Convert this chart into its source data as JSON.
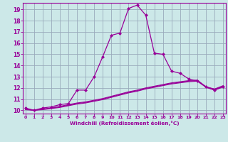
{
  "xlabel": "Windchill (Refroidissement éolien,°C)",
  "background_color": "#cce8e8",
  "grid_color": "#99aabb",
  "line_color": "#990099",
  "x_ticks": [
    0,
    1,
    2,
    3,
    4,
    5,
    6,
    7,
    8,
    9,
    10,
    11,
    12,
    13,
    14,
    15,
    16,
    17,
    18,
    19,
    20,
    21,
    22,
    23
  ],
  "y_ticks": [
    10,
    11,
    12,
    13,
    14,
    15,
    16,
    17,
    18,
    19
  ],
  "xlim": [
    -0.3,
    23.3
  ],
  "ylim": [
    9.7,
    19.6
  ],
  "series": [
    {
      "x": [
        0,
        1,
        2,
        3,
        4,
        5,
        6,
        7,
        8,
        9,
        10,
        11,
        12,
        13,
        14,
        15,
        16,
        17,
        18,
        19,
        20,
        21,
        22,
        23
      ],
      "y": [
        10.2,
        10.0,
        10.2,
        10.3,
        10.5,
        10.6,
        11.8,
        11.8,
        13.0,
        14.8,
        16.7,
        16.9,
        19.1,
        19.4,
        18.5,
        15.1,
        15.0,
        13.5,
        13.3,
        12.8,
        12.6,
        12.1,
        11.8,
        12.1
      ],
      "marker": true
    },
    {
      "x": [
        0,
        1,
        2,
        3,
        4,
        5,
        6,
        7,
        8,
        9,
        10,
        11,
        12,
        13,
        14,
        15,
        16,
        17,
        18,
        19,
        20,
        21,
        22,
        23
      ],
      "y": [
        10.1,
        10.0,
        10.1,
        10.2,
        10.35,
        10.5,
        10.65,
        10.75,
        10.9,
        11.05,
        11.25,
        11.45,
        11.65,
        11.8,
        12.0,
        12.15,
        12.3,
        12.45,
        12.55,
        12.65,
        12.7,
        12.1,
        11.9,
        12.2
      ],
      "marker": false
    },
    {
      "x": [
        0,
        1,
        2,
        3,
        4,
        5,
        6,
        7,
        8,
        9,
        10,
        11,
        12,
        13,
        14,
        15,
        16,
        17,
        18,
        19,
        20,
        21,
        22,
        23
      ],
      "y": [
        10.1,
        10.0,
        10.1,
        10.2,
        10.3,
        10.45,
        10.6,
        10.7,
        10.85,
        11.0,
        11.2,
        11.4,
        11.6,
        11.75,
        11.95,
        12.1,
        12.25,
        12.4,
        12.5,
        12.6,
        12.65,
        12.1,
        11.85,
        12.15
      ],
      "marker": false
    },
    {
      "x": [
        0,
        1,
        2,
        3,
        4,
        5,
        6,
        7,
        8,
        9,
        10,
        11,
        12,
        13,
        14,
        15,
        16,
        17,
        18,
        19,
        20,
        21,
        22,
        23
      ],
      "y": [
        10.05,
        10.0,
        10.05,
        10.15,
        10.25,
        10.4,
        10.55,
        10.65,
        10.8,
        10.95,
        11.15,
        11.35,
        11.55,
        11.7,
        11.9,
        12.05,
        12.2,
        12.35,
        12.45,
        12.55,
        12.6,
        12.05,
        11.8,
        12.1
      ],
      "marker": false
    }
  ]
}
